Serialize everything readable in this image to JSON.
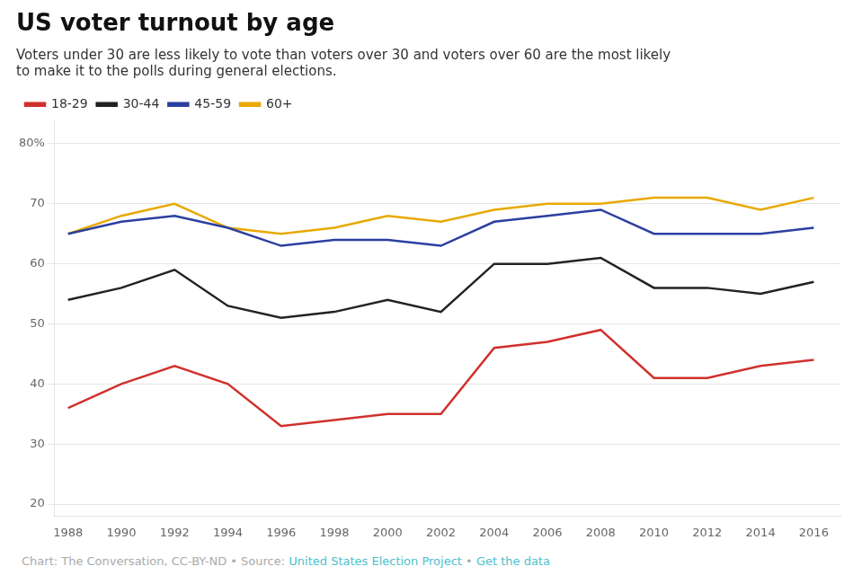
{
  "chart_data": {
    "type": "line",
    "title": "US voter turnout by age",
    "subtitle": "Voters under 30 are less likely to vote than voters over 30 and voters over 60 are the most likely\nto make it to the polls during general elections.",
    "x": [
      1988,
      1990,
      1992,
      1994,
      1996,
      1998,
      2000,
      2002,
      2004,
      2006,
      2008,
      2010,
      2012,
      2014,
      2016
    ],
    "series": [
      {
        "name": "18-29",
        "color": "#d0312d",
        "values": [
          36,
          40,
          43,
          40,
          33,
          34,
          35,
          35,
          46,
          47,
          49,
          41,
          41,
          43,
          44
        ]
      },
      {
        "name": "30-44",
        "color": "#222222",
        "values": [
          54,
          56,
          59,
          53,
          51,
          52,
          54,
          52,
          60,
          60,
          61,
          56,
          56,
          55,
          57
        ]
      },
      {
        "name": "45-59",
        "color": "#2b3fa0",
        "values": [
          65,
          67,
          68,
          66,
          63,
          64,
          64,
          63,
          67,
          68,
          69,
          65,
          65,
          65,
          66
        ]
      },
      {
        "name": "60+",
        "color": "#e8a900",
        "values": [
          65,
          68,
          70,
          66,
          65,
          66,
          68,
          67,
          69,
          70,
          70,
          71,
          71,
          69,
          71
        ]
      }
    ],
    "xlim": [
      1987.5,
      2017
    ],
    "xticks": [
      1988,
      1990,
      1992,
      1994,
      1996,
      1998,
      2000,
      2002,
      2004,
      2006,
      2008,
      2010,
      2012,
      2014,
      2016
    ],
    "ylim": [
      18,
      84
    ],
    "yticks": [
      20,
      30,
      40,
      50,
      60,
      70,
      {
        "value": 80,
        "label": "80%"
      }
    ],
    "grid": "y",
    "legend": "upper left",
    "footer": [
      {
        "text": "Chart: The Conversation, CC-BY-ND • Source: ",
        "color": "#aaaaaa"
      },
      {
        "text": "United States Election Project",
        "color": "#4bbfcc"
      },
      {
        "text": " • ",
        "color": "#aaaaaa"
      },
      {
        "text": "Get the data",
        "color": "#4bbfcc"
      }
    ]
  }
}
